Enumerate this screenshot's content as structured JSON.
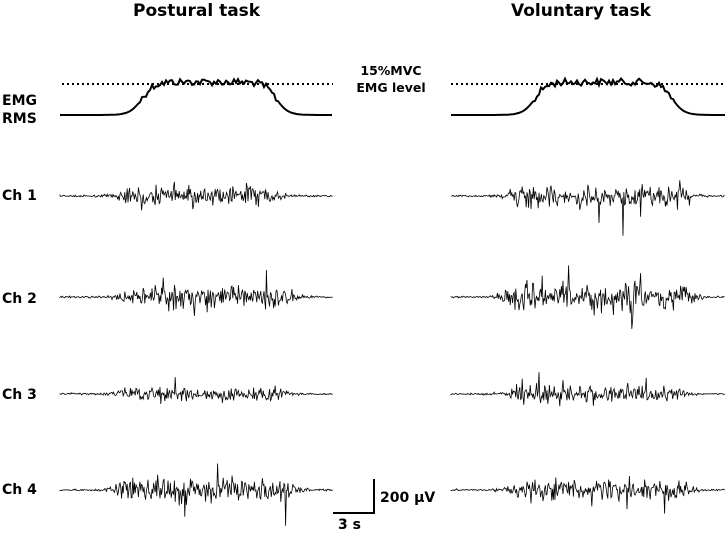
{
  "panels": {
    "postural_title": "Postural task",
    "voluntary_title": "Voluntary task"
  },
  "rows": {
    "rms_label_line1": "EMG",
    "rms_label_line2": "RMS",
    "ch1": "Ch 1",
    "ch2": "Ch 2",
    "ch3": "Ch 3",
    "ch4": "Ch 4"
  },
  "threshold": {
    "line1": "15%MVC",
    "line2": "EMG level"
  },
  "scale_bar": {
    "amplitude": "200 μV",
    "time": "3 s"
  },
  "colors": {
    "trace": "#000000",
    "background": "#ffffff"
  }
}
